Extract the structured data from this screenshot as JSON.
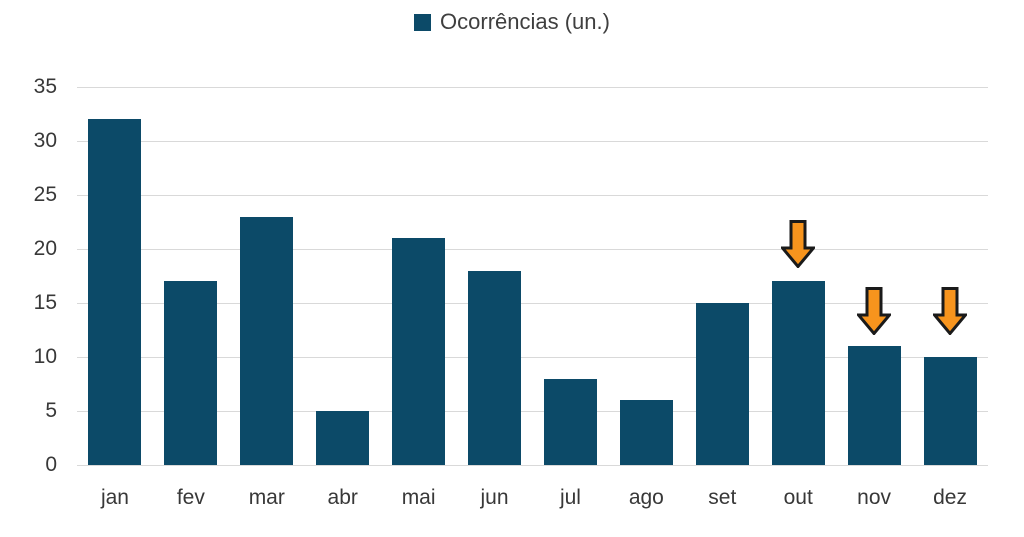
{
  "legend": {
    "label": "Ocorrências (un.)"
  },
  "chart_data": {
    "type": "bar",
    "title": "",
    "xlabel": "",
    "ylabel": "",
    "categories": [
      "jan",
      "fev",
      "mar",
      "abr",
      "mai",
      "jun",
      "jul",
      "ago",
      "set",
      "out",
      "nov",
      "dez"
    ],
    "series": [
      {
        "name": "Ocorrências (un.)",
        "values": [
          32,
          17,
          23,
          5,
          21,
          18,
          8,
          6,
          15,
          17,
          11,
          10
        ]
      }
    ],
    "ylim": [
      0,
      35
    ],
    "yticks": [
      0,
      5,
      10,
      15,
      20,
      25,
      30,
      35
    ],
    "grid": true,
    "legend_position": "top-center",
    "annotations": [
      {
        "month": "out",
        "icon": "down-arrow"
      },
      {
        "month": "nov",
        "icon": "down-arrow"
      },
      {
        "month": "dez",
        "icon": "down-arrow"
      }
    ],
    "colors": {
      "bar": "#0c4a68",
      "arrow_fill": "#f7941d",
      "arrow_stroke": "#1a1a1a",
      "grid": "#d9d9d9",
      "axis_text": "#383838",
      "legend_text": "#3f3f3f"
    }
  }
}
